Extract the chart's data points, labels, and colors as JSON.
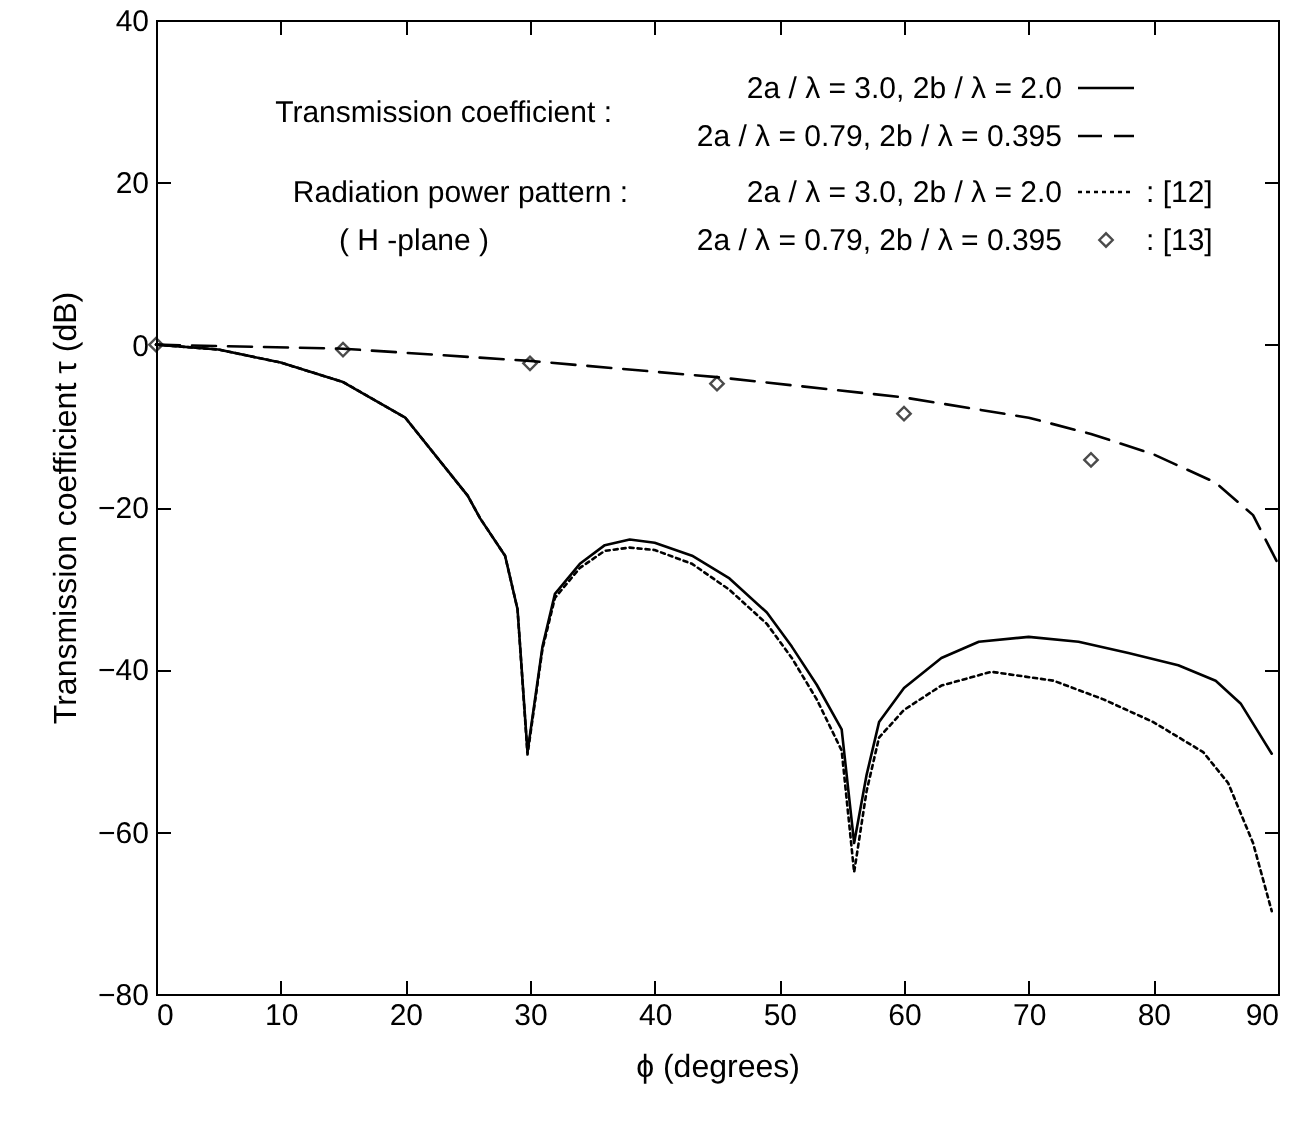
{
  "chart_data": {
    "type": "line",
    "xlabel": "ϕ  (degrees)",
    "ylabel": "Transmission coefficient   τ  (dB)",
    "xlim": [
      0,
      90
    ],
    "xticks": [
      0,
      10,
      20,
      30,
      40,
      50,
      60,
      70,
      80,
      90
    ],
    "ylim": [
      -80,
      40
    ],
    "yticks": [
      -80,
      -60,
      -40,
      -20,
      0,
      20,
      40
    ],
    "grid": false,
    "legend": "top",
    "annotations": [
      "Transmission coefficient :",
      "Radiation power pattern :",
      "( H -plane )",
      ": [12]",
      ": [13]"
    ],
    "series": [
      {
        "name": "2a / λ = 3.0,   2b / λ = 2.0",
        "color": "#000000",
        "line_style": "solid",
        "marker": "none",
        "x": [
          0,
          5,
          10,
          15,
          20,
          25,
          26,
          28,
          29,
          29.8,
          31,
          32,
          34,
          36,
          38,
          40,
          43,
          46,
          49,
          51,
          53,
          55,
          56,
          57,
          58,
          60,
          63,
          66,
          70,
          74,
          78,
          82,
          85,
          87,
          89.5
        ],
        "values": [
          0,
          -0.6,
          -2.2,
          -4.6,
          -9,
          -18.6,
          -21.4,
          -26,
          -32.6,
          -50.2,
          -37.2,
          -30.7,
          -27,
          -24.7,
          -24,
          -24.4,
          -26,
          -28.8,
          -33,
          -37.2,
          -41.9,
          -47.4,
          -61.4,
          -53,
          -46.5,
          -42.3,
          -38.6,
          -36.6,
          -36,
          -36.6,
          -38,
          -39.5,
          -41.4,
          -44.2,
          -50.4
        ]
      },
      {
        "name": "2a / λ = 0.79, 2b / λ = 0.395",
        "color": "#000000",
        "line_style": "dashed",
        "marker": "none",
        "x": [
          0,
          15,
          30,
          45,
          60,
          70,
          75,
          80,
          85,
          88,
          90
        ],
        "values": [
          0,
          -0.5,
          -2,
          -4,
          -6.5,
          -9,
          -11,
          -13.5,
          -17,
          -21,
          -27
        ]
      },
      {
        "name": "2a / λ = 3.0,   2b / λ = 2.0",
        "color": "#000000",
        "line_style": "dotted",
        "marker": "none",
        "x": [
          0,
          5,
          10,
          15,
          20,
          25,
          26,
          28,
          29,
          29.8,
          31,
          32,
          34,
          36,
          38,
          40,
          43,
          46,
          49,
          51,
          53,
          55,
          56,
          57,
          58,
          60,
          63,
          67,
          72,
          76,
          80,
          84,
          86,
          88,
          89.5
        ],
        "values": [
          0,
          -0.6,
          -2.2,
          -4.6,
          -9,
          -18.6,
          -21.4,
          -26,
          -32.6,
          -50.5,
          -37.5,
          -31.2,
          -27.5,
          -25.4,
          -25,
          -25.3,
          -27,
          -30.2,
          -34.4,
          -38.6,
          -43.7,
          -50,
          -65,
          -55,
          -48.4,
          -45,
          -42,
          -40.3,
          -41.4,
          -43.7,
          -46.5,
          -50.2,
          -54,
          -61.4,
          -69.8
        ]
      },
      {
        "name": "2a / λ = 0.79, 2b / λ = 0.395",
        "type": "scatter",
        "color": "#000000",
        "marker": "diamond",
        "x": [
          0,
          15,
          30,
          45,
          60,
          75
        ],
        "values": [
          0,
          -0.6,
          -2.3,
          -4.8,
          -8.5,
          -14.2
        ]
      }
    ]
  }
}
